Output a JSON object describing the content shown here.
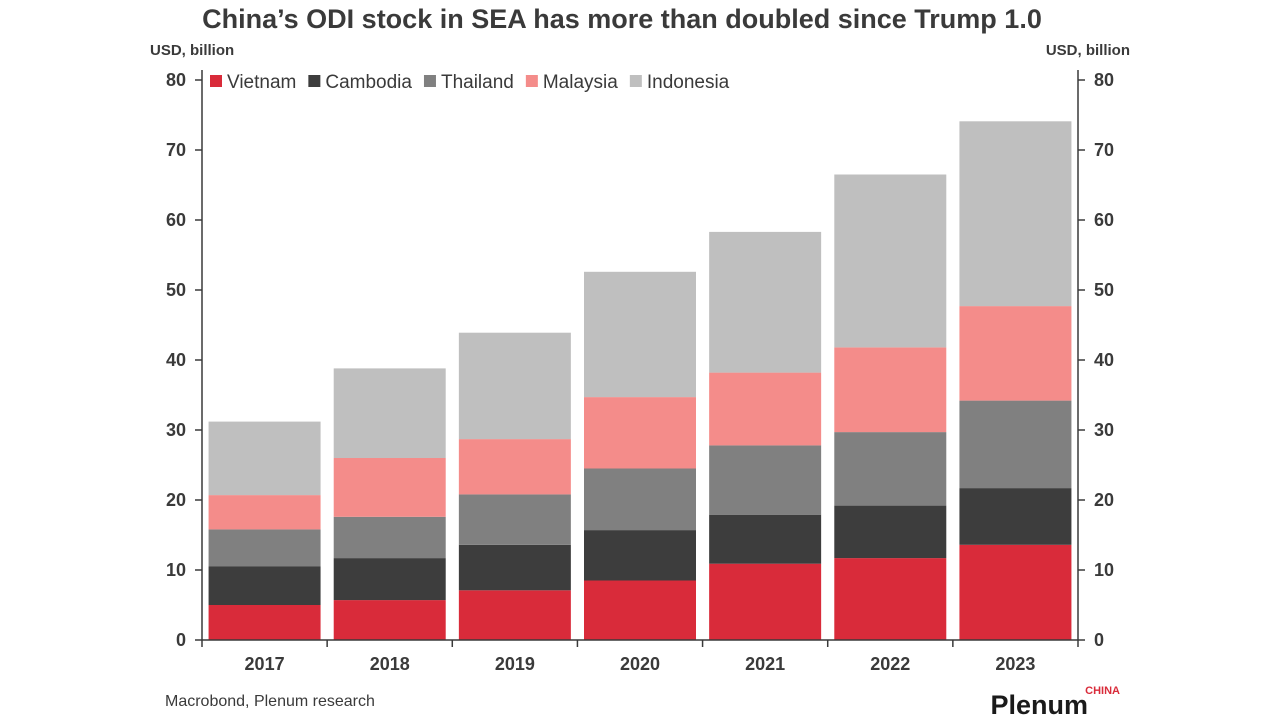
{
  "chart_data": {
    "type": "bar",
    "stacked": true,
    "title": "China’s ODI stock in SEA has more than doubled since Trump 1.0",
    "ylabel_left": "USD, billion",
    "ylabel_right": "USD, billion",
    "ylim": [
      0,
      80
    ],
    "yticks": [
      0,
      10,
      20,
      30,
      40,
      50,
      60,
      70,
      80
    ],
    "grid": false,
    "legend_position": "top-left",
    "categories": [
      "2017",
      "2018",
      "2019",
      "2020",
      "2021",
      "2022",
      "2023"
    ],
    "series": [
      {
        "name": "Vietnam",
        "color": "#d92b3a",
        "values": [
          5.0,
          5.7,
          7.1,
          8.5,
          10.9,
          11.7,
          13.6
        ]
      },
      {
        "name": "Cambodia",
        "color": "#3d3d3d",
        "values": [
          5.5,
          6.0,
          6.5,
          7.2,
          7.0,
          7.5,
          8.1
        ]
      },
      {
        "name": "Thailand",
        "color": "#808080",
        "values": [
          5.3,
          5.9,
          7.2,
          8.8,
          9.9,
          10.5,
          12.5
        ]
      },
      {
        "name": "Malaysia",
        "color": "#f48c8a",
        "values": [
          4.9,
          8.4,
          7.9,
          10.2,
          10.4,
          12.1,
          13.5
        ]
      },
      {
        "name": "Indonesia",
        "color": "#bfbfbf",
        "values": [
          10.5,
          12.8,
          15.2,
          17.9,
          20.1,
          24.7,
          26.4
        ]
      }
    ]
  },
  "source": "Macrobond, Plenum research",
  "brand": {
    "name": "Plenum",
    "sub": "CHINA",
    "sub_color": "#d92b3a"
  }
}
